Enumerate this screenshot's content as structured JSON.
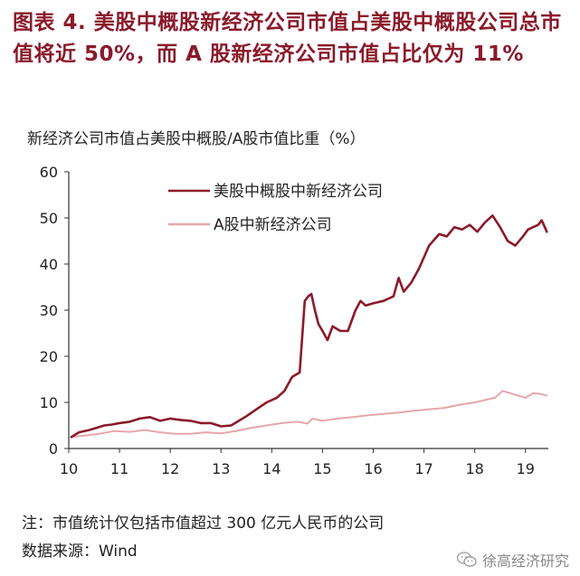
{
  "figure": {
    "title": "图表  4.   美股中概股新经济公司市值占美股中概股公司总市值将近 50%，而 A 股新经济公司市值占比仅为 11%",
    "unit_label": "新经济公司市值占美股中概股/A股市值比重（%）",
    "note": "注：市值统计仅包括市值超过 300 亿元人民币的公司",
    "source": "数据来源：Wind",
    "watermark": "徐高经济研究",
    "watermark_icon": "wechat-icon"
  },
  "colors": {
    "title": "#8b1a2b",
    "series_us": "#8b1a2b",
    "series_a": "#e6a6ab",
    "axis": "#333333"
  },
  "chart_data": {
    "type": "line",
    "title": "",
    "xlabel": "",
    "ylabel": "新经济公司市值占美股中概股/A股市值比重（%）",
    "xlim": [
      10,
      19.45
    ],
    "ylim": [
      0,
      60
    ],
    "x_ticks": [
      10,
      11,
      12,
      13,
      14,
      15,
      16,
      17,
      18,
      19
    ],
    "y_ticks": [
      0,
      10,
      20,
      30,
      40,
      50,
      60
    ],
    "grid": false,
    "legend": "top-left",
    "series": [
      {
        "name": "美股中概股中新经济公司",
        "x": [
          10.05,
          10.2,
          10.4,
          10.55,
          10.7,
          10.85,
          11.0,
          11.2,
          11.4,
          11.6,
          11.8,
          12.0,
          12.2,
          12.4,
          12.6,
          12.8,
          13.0,
          13.2,
          13.35,
          13.5,
          13.7,
          13.9,
          14.1,
          14.25,
          14.4,
          14.55,
          14.65,
          14.72,
          14.78,
          14.85,
          14.92,
          15.0,
          15.1,
          15.2,
          15.35,
          15.5,
          15.65,
          15.75,
          15.85,
          16.0,
          16.2,
          16.4,
          16.5,
          16.6,
          16.75,
          16.9,
          17.1,
          17.3,
          17.45,
          17.6,
          17.75,
          17.9,
          18.05,
          18.2,
          18.35,
          18.5,
          18.65,
          18.8,
          18.95,
          19.05,
          19.15,
          19.25,
          19.32,
          19.38,
          19.42
        ],
        "y": [
          2.5,
          3.5,
          4,
          4.5,
          5,
          5.2,
          5.5,
          5.8,
          6.5,
          6.8,
          6,
          6.5,
          6.2,
          6,
          5.5,
          5.5,
          4.8,
          5,
          6,
          7,
          8.5,
          10,
          11,
          12.5,
          15.5,
          16.5,
          32,
          33,
          33.5,
          30,
          27,
          25.5,
          23.5,
          26.5,
          25.5,
          25.5,
          30,
          32,
          31,
          31.5,
          32,
          33,
          37,
          34,
          36,
          39,
          44,
          46.5,
          46,
          48,
          47.5,
          48.5,
          47,
          49,
          50.5,
          48,
          45,
          44,
          46,
          47.5,
          48,
          48.5,
          49.5,
          48,
          47
        ]
      },
      {
        "name": "A股中新经济公司",
        "x": [
          10.05,
          10.3,
          10.6,
          10.9,
          11.2,
          11.5,
          11.8,
          12.1,
          12.4,
          12.7,
          13.0,
          13.3,
          13.6,
          13.9,
          14.2,
          14.5,
          14.7,
          14.8,
          15.0,
          15.3,
          15.6,
          15.9,
          16.2,
          16.5,
          16.8,
          17.1,
          17.4,
          17.7,
          18.0,
          18.2,
          18.4,
          18.55,
          18.7,
          18.85,
          19.0,
          19.15,
          19.3,
          19.42
        ],
        "y": [
          2.5,
          2.8,
          3.2,
          3.8,
          3.6,
          4,
          3.5,
          3.2,
          3.2,
          3.5,
          3.3,
          3.8,
          4.5,
          5,
          5.5,
          5.8,
          5.4,
          6.5,
          6,
          6.5,
          6.8,
          7.2,
          7.5,
          7.8,
          8.2,
          8.5,
          8.8,
          9.5,
          10,
          10.5,
          11,
          12.5,
          12,
          11.5,
          11,
          12,
          11.8,
          11.5
        ]
      }
    ]
  }
}
